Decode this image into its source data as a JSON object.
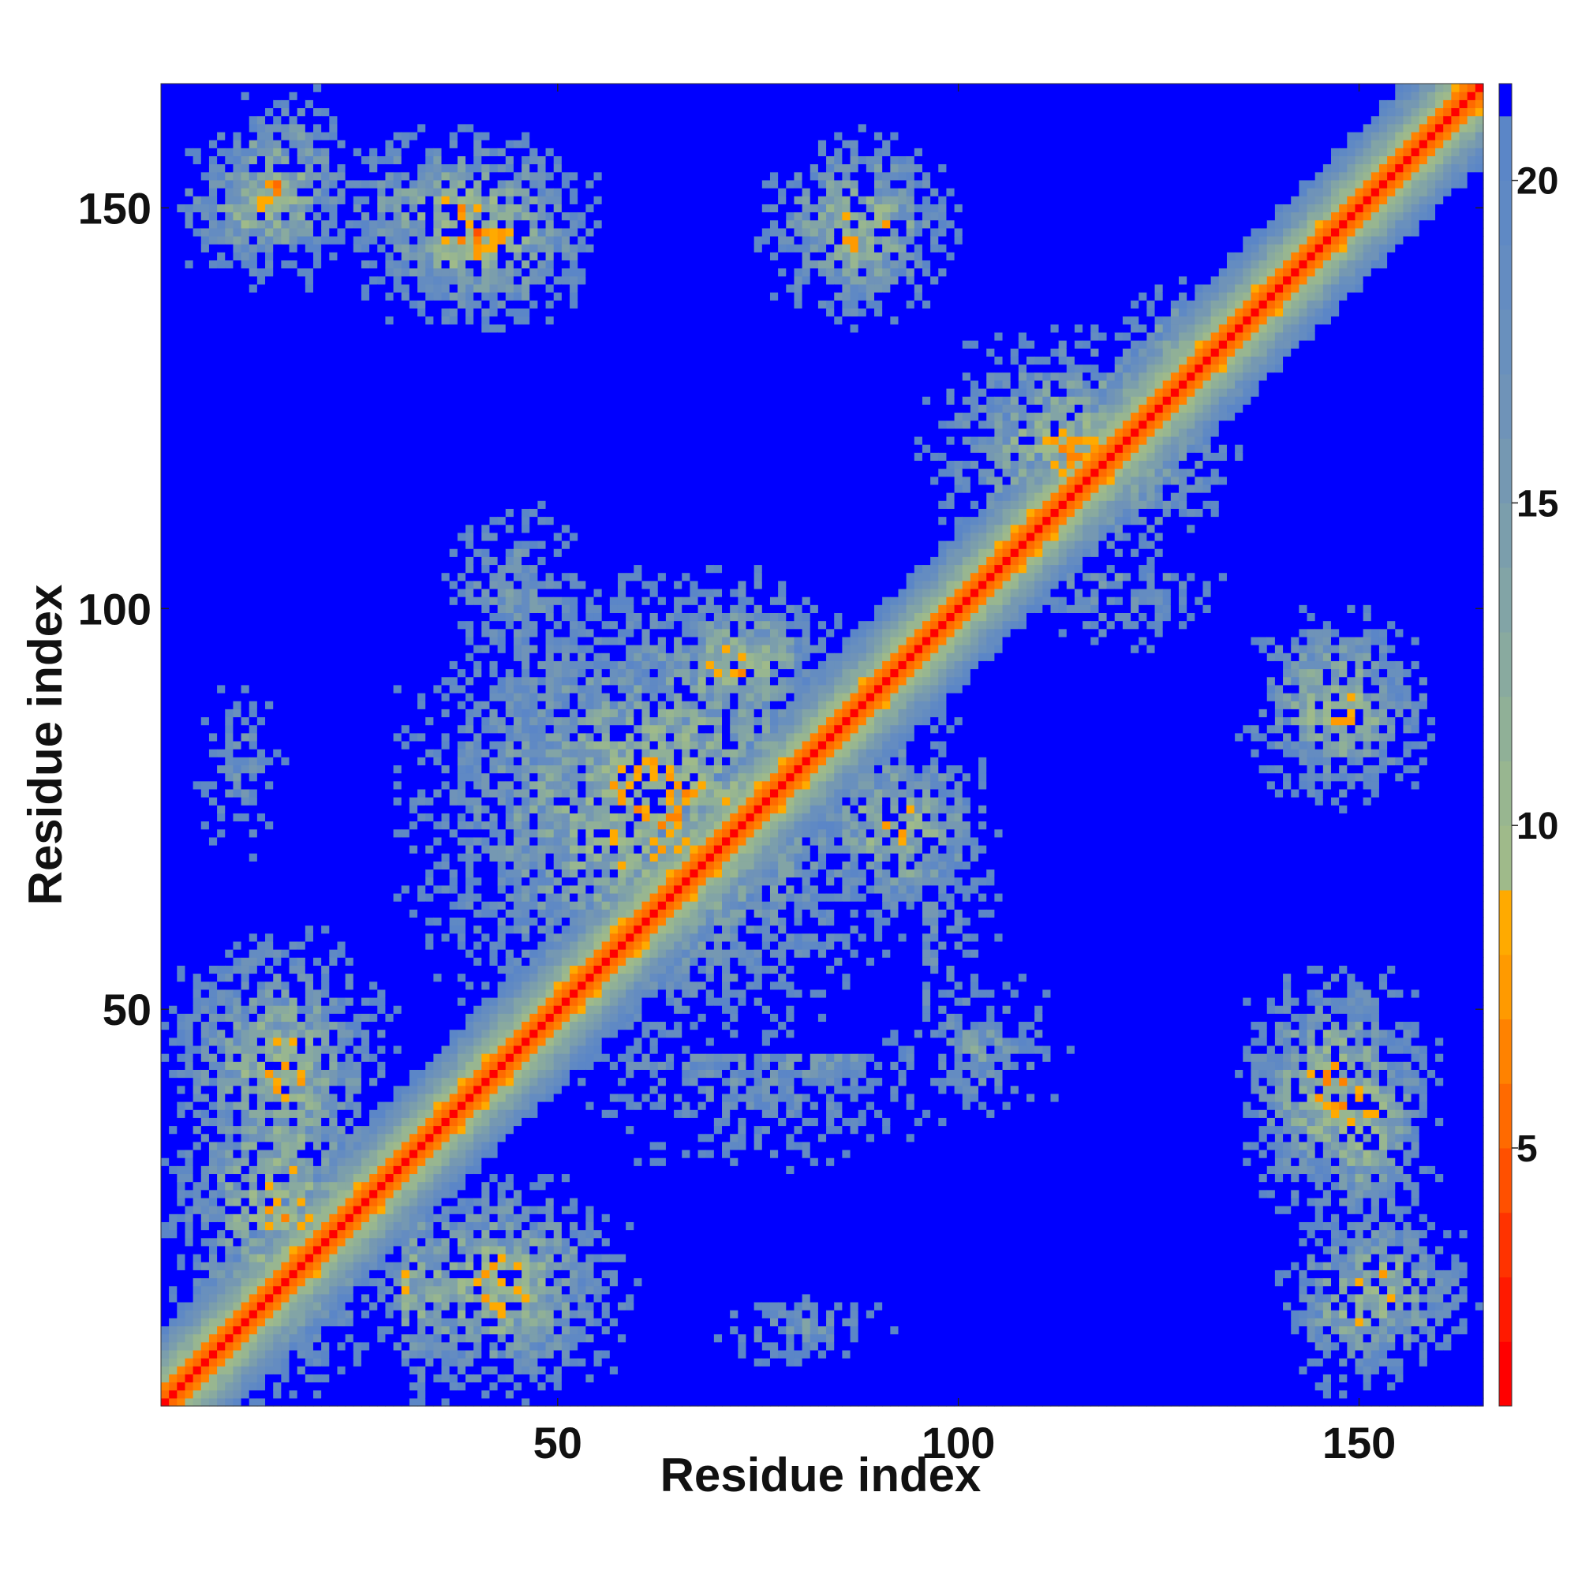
{
  "chart_data": {
    "type": "heatmap",
    "title": "",
    "xlabel": "Residue index",
    "ylabel": "Residue index",
    "xlim": [
      0.5,
      165.5
    ],
    "ylim": [
      0.5,
      165.5
    ],
    "n_residues": 165,
    "x_ticks": [
      50,
      100,
      150
    ],
    "y_ticks": [
      50,
      100,
      150
    ],
    "x_tick_labels": [
      "50",
      "100",
      "150"
    ],
    "y_tick_labels": [
      "50",
      "100",
      "150"
    ],
    "colorbar": {
      "range": [
        1,
        21.5
      ],
      "ticks": [
        5,
        10,
        15,
        20
      ],
      "tick_labels": [
        "5",
        "10",
        "15",
        "20"
      ],
      "colormap": [
        [
          1,
          "#ff0000"
        ],
        [
          2,
          "#ff1a00"
        ],
        [
          3,
          "#ff3300"
        ],
        [
          4,
          "#ff5000"
        ],
        [
          5,
          "#ff6a00"
        ],
        [
          6,
          "#ff8200"
        ],
        [
          7,
          "#ff9a00"
        ],
        [
          8,
          "#ffaa00"
        ],
        [
          9,
          "#9fba8a"
        ],
        [
          10,
          "#98b690"
        ],
        [
          11,
          "#90b097"
        ],
        [
          12,
          "#89aa9f"
        ],
        [
          13,
          "#82a4a6"
        ],
        [
          14,
          "#7b9eac"
        ],
        [
          15,
          "#7598b2"
        ],
        [
          16,
          "#6f93b8"
        ],
        [
          17,
          "#6990bd"
        ],
        [
          18,
          "#648cc1"
        ],
        [
          19,
          "#5f89c4"
        ],
        [
          20,
          "#5b86c7"
        ],
        [
          21,
          "#0000ff"
        ]
      ],
      "saturated_color": "#0000ff"
    },
    "diagonal_distance": 3.8,
    "contact_clusters": [
      {
        "x_range": [
          1,
          30
        ],
        "y_range": [
          1,
          50
        ],
        "min_distance": 5
      },
      {
        "x_range": [
          5,
          25
        ],
        "y_range": [
          140,
          165
        ],
        "min_distance": 5
      },
      {
        "x_range": [
          25,
          60
        ],
        "y_range": [
          1,
          30
        ],
        "min_distance": 5
      },
      {
        "x_range": [
          25,
          55
        ],
        "y_range": [
          135,
          158
        ],
        "min_distance": 4
      },
      {
        "x_range": [
          30,
          95
        ],
        "y_range": [
          45,
          105
        ],
        "min_distance": 5
      },
      {
        "x_range": [
          75,
          100
        ],
        "y_range": [
          135,
          160
        ],
        "min_distance": 5
      },
      {
        "x_range": [
          80,
          105
        ],
        "y_range": [
          60,
          85
        ],
        "min_distance": 5
      },
      {
        "x_range": [
          95,
          135
        ],
        "y_range": [
          105,
          135
        ],
        "min_distance": 5
      },
      {
        "x_range": [
          140,
          160
        ],
        "y_range": [
          20,
          55
        ],
        "min_distance": 5
      },
      {
        "x_range": [
          135,
          160
        ],
        "y_range": [
          80,
          100
        ],
        "min_distance": 6
      },
      {
        "x_range": [
          140,
          160
        ],
        "y_range": [
          1,
          25
        ],
        "min_distance": 6
      },
      {
        "x_range": [
          1,
          20
        ],
        "y_range": [
          60,
          100
        ],
        "min_distance": 12
      },
      {
        "x_range": [
          115,
          140
        ],
        "y_range": [
          120,
          145
        ],
        "min_distance": 9
      },
      {
        "x_range": [
          85,
          120
        ],
        "y_range": [
          30,
          60
        ],
        "min_distance": 11
      }
    ]
  }
}
